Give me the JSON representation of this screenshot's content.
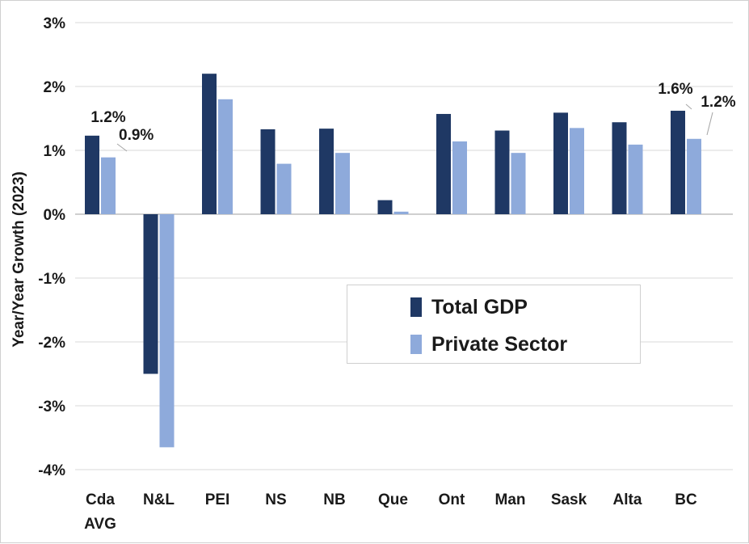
{
  "colors": {
    "total_gdp": "#1f3864",
    "private_sector": "#8eaadb",
    "grid": "#d9d9d9",
    "text": "#1a1a1a"
  },
  "chart_data": {
    "type": "bar",
    "ylabel": "Year/Year Growth (2023)",
    "ylim": [
      -4,
      3
    ],
    "yticks": [
      "3%",
      "2%",
      "1%",
      "0%",
      "-1%",
      "-2%",
      "-3%",
      "-4%"
    ],
    "grid": true,
    "legend_position": "center-right",
    "categories": [
      [
        "Cda",
        "AVG"
      ],
      [
        "N&L"
      ],
      [
        "PEI"
      ],
      [
        "NS"
      ],
      [
        "NB"
      ],
      [
        "Que"
      ],
      [
        "Ont"
      ],
      [
        "Man"
      ],
      [
        "Sask"
      ],
      [
        "Alta"
      ],
      [
        "BC"
      ]
    ],
    "series": [
      {
        "name": "Total GDP",
        "values": [
          1.23,
          -2.5,
          2.2,
          1.33,
          1.34,
          0.22,
          1.57,
          1.31,
          1.59,
          1.44,
          1.62
        ]
      },
      {
        "name": "Private Sector",
        "values": [
          0.89,
          -3.65,
          1.8,
          0.79,
          0.96,
          0.04,
          1.14,
          0.96,
          1.35,
          1.09,
          1.18
        ]
      }
    ],
    "data_labels": [
      {
        "category_index": 0,
        "series_index": 0,
        "text": "1.2%"
      },
      {
        "category_index": 0,
        "series_index": 1,
        "text": "0.9%"
      },
      {
        "category_index": 10,
        "series_index": 0,
        "text": "1.6%"
      },
      {
        "category_index": 10,
        "series_index": 1,
        "text": "1.2%"
      }
    ]
  }
}
